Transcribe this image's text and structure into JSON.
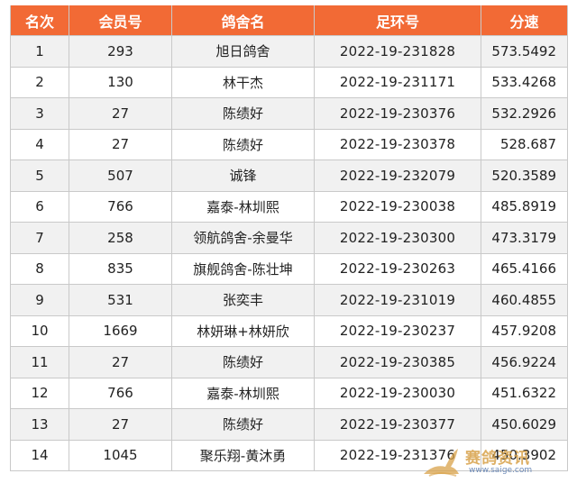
{
  "table": {
    "headers": {
      "rank": "名次",
      "member": "会员号",
      "loft": "鸽舍名",
      "ring": "足环号",
      "speed": "分速"
    },
    "rows": [
      {
        "rank": "1",
        "member": "293",
        "loft": "旭日鸽舍",
        "ring": "2022-19-231828",
        "speed": "573.5492"
      },
      {
        "rank": "2",
        "member": "130",
        "loft": "林干杰",
        "ring": "2022-19-231171",
        "speed": "533.4268"
      },
      {
        "rank": "3",
        "member": "27",
        "loft": "陈绩好",
        "ring": "2022-19-230376",
        "speed": "532.2926"
      },
      {
        "rank": "4",
        "member": "27",
        "loft": "陈绩好",
        "ring": "2022-19-230378",
        "speed": "528.687"
      },
      {
        "rank": "5",
        "member": "507",
        "loft": "诚锋",
        "ring": "2022-19-232079",
        "speed": "520.3589"
      },
      {
        "rank": "6",
        "member": "766",
        "loft": "嘉泰-林圳熙",
        "ring": "2022-19-230038",
        "speed": "485.8919"
      },
      {
        "rank": "7",
        "member": "258",
        "loft": "领航鸽舍-余曼华",
        "ring": "2022-19-230300",
        "speed": "473.3179"
      },
      {
        "rank": "8",
        "member": "835",
        "loft": "旗舰鸽舍-陈壮坤",
        "ring": "2022-19-230263",
        "speed": "465.4166"
      },
      {
        "rank": "9",
        "member": "531",
        "loft": "张奕丰",
        "ring": "2022-19-231019",
        "speed": "460.4855"
      },
      {
        "rank": "10",
        "member": "1669",
        "loft": "林妍琳+林妍欣",
        "ring": "2022-19-230237",
        "speed": "457.9208"
      },
      {
        "rank": "11",
        "member": "27",
        "loft": "陈绩好",
        "ring": "2022-19-230385",
        "speed": "456.9224"
      },
      {
        "rank": "12",
        "member": "766",
        "loft": "嘉泰-林圳熙",
        "ring": "2022-19-230030",
        "speed": "451.6322"
      },
      {
        "rank": "13",
        "member": "27",
        "loft": "陈绩好",
        "ring": "2022-19-230377",
        "speed": "450.6029"
      },
      {
        "rank": "14",
        "member": "1045",
        "loft": "聚乐翔-黄沐勇",
        "ring": "2022-19-231376",
        "speed": "450.3902"
      }
    ]
  },
  "watermark": {
    "title": "赛鸽资讯",
    "url": "www.saige.com",
    "logo_icon": "pigeon-icon",
    "color": "#d8a24a"
  },
  "colors": {
    "header_bg": "#f26a35",
    "header_text": "#ffffff",
    "row_alt_bg": "#f1f1f1",
    "border": "#c9c9c9"
  }
}
